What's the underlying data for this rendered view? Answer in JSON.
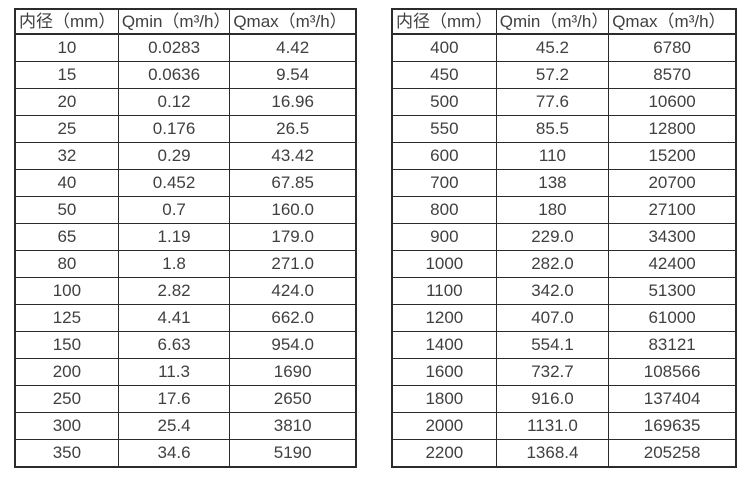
{
  "colors": {
    "border": "#2b2b2b",
    "text": "#404040",
    "background": "#ffffff"
  },
  "tables": [
    {
      "name": "small-diameter-flow-table",
      "headers": [
        "内径（mm）",
        "Qmin（m³/h）",
        "Qmax（m³/h）"
      ],
      "rows": [
        [
          "10",
          "0.0283",
          "4.42"
        ],
        [
          "15",
          "0.0636",
          "9.54"
        ],
        [
          "20",
          "0.12",
          "16.96"
        ],
        [
          "25",
          "0.176",
          "26.5"
        ],
        [
          "32",
          "0.29",
          "43.42"
        ],
        [
          "40",
          "0.452",
          "67.85"
        ],
        [
          "50",
          "0.7",
          "160.0"
        ],
        [
          "65",
          "1.19",
          "179.0"
        ],
        [
          "80",
          "1.8",
          "271.0"
        ],
        [
          "100",
          "2.82",
          "424.0"
        ],
        [
          "125",
          "4.41",
          "662.0"
        ],
        [
          "150",
          "6.63",
          "954.0"
        ],
        [
          "200",
          "11.3",
          "1690"
        ],
        [
          "250",
          "17.6",
          "2650"
        ],
        [
          "300",
          "25.4",
          "3810"
        ],
        [
          "350",
          "34.6",
          "5190"
        ]
      ]
    },
    {
      "name": "large-diameter-flow-table",
      "headers": [
        "内径（mm）",
        "Qmin（m³/h）",
        "Qmax（m³/h）"
      ],
      "rows": [
        [
          "400",
          "45.2",
          "6780"
        ],
        [
          "450",
          "57.2",
          "8570"
        ],
        [
          "500",
          "77.6",
          "10600"
        ],
        [
          "550",
          "85.5",
          "12800"
        ],
        [
          "600",
          "110",
          "15200"
        ],
        [
          "700",
          "138",
          "20700"
        ],
        [
          "800",
          "180",
          "27100"
        ],
        [
          "900",
          "229.0",
          "34300"
        ],
        [
          "1000",
          "282.0",
          "42400"
        ],
        [
          "1100",
          "342.0",
          "51300"
        ],
        [
          "1200",
          "407.0",
          "61000"
        ],
        [
          "1400",
          "554.1",
          "83121"
        ],
        [
          "1600",
          "732.7",
          "108566"
        ],
        [
          "1800",
          "916.0",
          "137404"
        ],
        [
          "2000",
          "1131.0",
          "169635"
        ],
        [
          "2200",
          "1368.4",
          "205258"
        ]
      ]
    }
  ]
}
